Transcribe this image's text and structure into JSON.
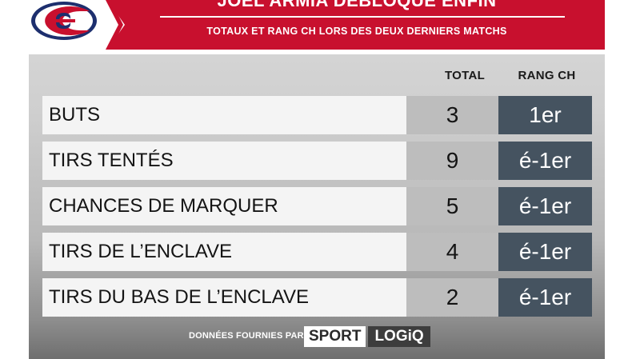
{
  "header": {
    "title": "JOËL ARMIA DÉBLOQUE ENFIN",
    "subtitle": "TOTAUX ET RANG CH LORS DES DEUX DERNIERS MATCHS"
  },
  "columns": {
    "total": "TOTAL",
    "rank": "RANG CH"
  },
  "rows": [
    {
      "label": "BUTS",
      "total": "3",
      "rank": "1er"
    },
    {
      "label": "TIRS TENTÉS",
      "total": "9",
      "rank": "é-1er"
    },
    {
      "label": "CHANCES DE MARQUER",
      "total": "5",
      "rank": "é-1er"
    },
    {
      "label": "TIRS DE L’ENCLAVE",
      "total": "4",
      "rank": "é-1er"
    },
    {
      "label": "TIRS DU BAS DE L’ENCLAVE",
      "total": "2",
      "rank": "é-1er"
    }
  ],
  "footer": {
    "label": "DONNÉES FOURNIES PAR",
    "brand_a": "SPORT",
    "brand_b": "LOGiQ"
  },
  "colors": {
    "header_red": "#c8102e",
    "logo_blue": "#1d2f6e",
    "rank_cell": "#455360",
    "total_cell": "#bdbdbd"
  },
  "icons": {
    "logo": "canadiens-logo"
  }
}
